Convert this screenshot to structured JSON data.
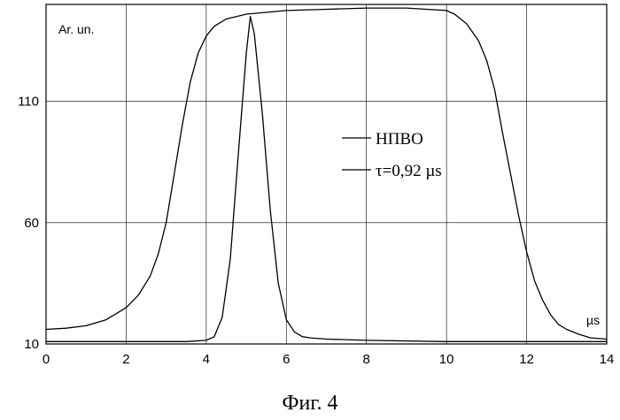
{
  "chart_data": {
    "type": "line",
    "caption": "Фиг. 4",
    "ylabel": "Ar. un.",
    "xlabel": "µs",
    "xlim": [
      0,
      14
    ],
    "ylim": [
      10,
      150
    ],
    "x_ticks": [
      "0",
      "2",
      "4",
      "6",
      "8",
      "10",
      "12",
      "14"
    ],
    "y_ticks": [
      {
        "value": 10,
        "label": "10"
      },
      {
        "value": 60,
        "label": "60"
      },
      {
        "value": 110,
        "label": "110"
      }
    ],
    "grid": true,
    "legend_position": "center-right",
    "series": [
      {
        "name": "НПВО",
        "color": "#000000",
        "x": [
          0,
          0.5,
          1,
          1.5,
          2,
          2.3,
          2.6,
          2.8,
          3,
          3.2,
          3.4,
          3.6,
          3.8,
          4,
          4.2,
          4.5,
          5,
          6,
          7,
          8,
          9,
          10,
          10.2,
          10.5,
          10.8,
          11,
          11.2,
          11.4,
          11.6,
          11.8,
          12,
          12.2,
          12.4,
          12.6,
          12.8,
          13,
          13.3,
          13.6,
          14
        ],
        "y": [
          16,
          16.5,
          17.5,
          20,
          25,
          30,
          38,
          47,
          60,
          80,
          100,
          118,
          130,
          137,
          141,
          144,
          146,
          147.5,
          148,
          148.5,
          148.5,
          147.5,
          146,
          142,
          135,
          127,
          115,
          97,
          80,
          63,
          48,
          36,
          28,
          22,
          18,
          16,
          14,
          12.5,
          12
        ]
      },
      {
        "name": "τ=0,92 µs",
        "color": "#000000",
        "x": [
          0,
          1,
          2,
          3,
          3.5,
          4,
          4.2,
          4.4,
          4.6,
          4.8,
          5,
          5.1,
          5.2,
          5.4,
          5.6,
          5.8,
          6,
          6.2,
          6.4,
          6.6,
          7,
          8,
          10,
          12,
          14
        ],
        "y": [
          11,
          11,
          11,
          11,
          11,
          11.5,
          13,
          21,
          45,
          88,
          130,
          145,
          138,
          105,
          65,
          35,
          20,
          15,
          13,
          12.5,
          12,
          11.5,
          11,
          11,
          11
        ]
      }
    ]
  }
}
